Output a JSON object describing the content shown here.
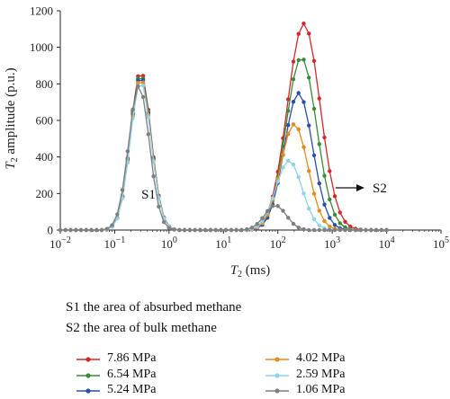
{
  "chart_data": {
    "type": "line",
    "title": "",
    "xlabel": {
      "var": "T",
      "sub": "2",
      "unit": " (ms)"
    },
    "ylabel": {
      "var": "T",
      "sub": "2",
      "rest": " amplitude (p.u.)"
    },
    "xscale": "log",
    "xlim": [
      0.01,
      100000
    ],
    "ylim": [
      0,
      1200
    ],
    "x_ticks": [
      {
        "base": "10",
        "exp": "−2"
      },
      {
        "base": "10",
        "exp": "−1"
      },
      {
        "base": "10",
        "exp": "0"
      },
      {
        "base": "10",
        "exp": "1"
      },
      {
        "base": "10",
        "exp": "2"
      },
      {
        "base": "10",
        "exp": "3"
      },
      {
        "base": "10",
        "exp": "4"
      },
      {
        "base": "10",
        "exp": "5"
      }
    ],
    "y_ticks": [
      "0",
      "200",
      "400",
      "600",
      "800",
      "1000",
      "1200"
    ],
    "grid": false,
    "legend_position": "bottom",
    "annotations": {
      "s1": "S1",
      "s2": "S2"
    },
    "series": [
      {
        "name": "7.86 MPa",
        "color": "#d62728",
        "peak1": 870,
        "c1": 0.3,
        "peak2": 1130,
        "c2": 300,
        "w2": 0.3
      },
      {
        "name": "6.54 MPa",
        "color": "#3a8a3a",
        "peak1": 855,
        "c1": 0.3,
        "peak2": 945,
        "c2": 270,
        "w2": 0.28
      },
      {
        "name": "5.24 MPa",
        "color": "#2a4fa8",
        "peak1": 845,
        "c1": 0.3,
        "peak2": 750,
        "c2": 240,
        "w2": 0.26
      },
      {
        "name": "4.02 MPa",
        "color": "#e8891c",
        "peak1": 832,
        "c1": 0.3,
        "peak2": 580,
        "c2": 200,
        "w2": 0.25
      },
      {
        "name": "2.59 MPa",
        "color": "#8fd3ea",
        "peak1": 815,
        "c1": 0.3,
        "peak2": 380,
        "c2": 160,
        "w2": 0.24
      },
      {
        "name": "1.06 MPa",
        "color": "#7f7f7f",
        "peak1": 790,
        "c1": 0.28,
        "peak2": 135,
        "c2": 90,
        "w2": 0.2
      }
    ]
  },
  "notes": {
    "s1": "S1 the area of absurbed methane",
    "s2": "S2 the area of bulk methane"
  }
}
